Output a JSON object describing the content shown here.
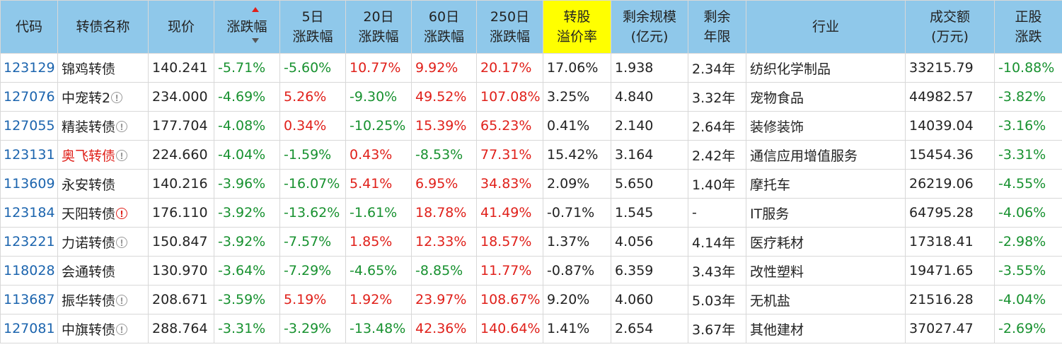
{
  "headers": {
    "code": "代码",
    "name": "转债名称",
    "price": "现价",
    "change": "涨跌幅",
    "d5": [
      "5日",
      "涨跌幅"
    ],
    "d20": [
      "20日",
      "涨跌幅"
    ],
    "d60": [
      "60日",
      "涨跌幅"
    ],
    "d250": [
      "250日",
      "涨跌幅"
    ],
    "premium": [
      "转股",
      "溢价率"
    ],
    "scale": [
      "剩余规模",
      "(亿元)"
    ],
    "years": [
      "剩余",
      "年限"
    ],
    "industry": "行业",
    "volume": [
      "成交额",
      "(万元)"
    ],
    "stock": [
      "正股",
      "涨跌"
    ]
  },
  "rows": [
    {
      "code": "123129",
      "name": "锦鸡转债",
      "name_red": false,
      "info": "none",
      "price": "140.241",
      "change": "-5.71%",
      "d5": "-5.60%",
      "d20": "10.77%",
      "d60": "9.92%",
      "d250": "20.17%",
      "premium": "17.06%",
      "scale": "1.938",
      "years": "2.34年",
      "industry": "纺织化学制品",
      "volume": "33215.79",
      "stock": "-10.88%"
    },
    {
      "code": "127076",
      "name": "中宠转2",
      "name_red": false,
      "info": "gray",
      "price": "234.000",
      "change": "-4.69%",
      "d5": "5.26%",
      "d20": "-9.30%",
      "d60": "49.52%",
      "d250": "107.08%",
      "premium": "3.25%",
      "scale": "4.840",
      "years": "3.32年",
      "industry": "宠物食品",
      "volume": "44982.57",
      "stock": "-3.82%"
    },
    {
      "code": "127055",
      "name": "精装转债",
      "name_red": false,
      "info": "gray",
      "price": "177.704",
      "change": "-4.08%",
      "d5": "0.34%",
      "d20": "-10.25%",
      "d60": "15.39%",
      "d250": "65.23%",
      "premium": "0.41%",
      "scale": "2.140",
      "years": "2.64年",
      "industry": "装修装饰",
      "volume": "14039.04",
      "stock": "-3.16%"
    },
    {
      "code": "123131",
      "name": "奥飞转债",
      "name_red": true,
      "info": "gray",
      "price": "224.660",
      "change": "-4.04%",
      "d5": "-1.59%",
      "d20": "0.43%",
      "d60": "-8.53%",
      "d250": "77.31%",
      "premium": "15.42%",
      "scale": "3.164",
      "years": "2.42年",
      "industry": "通信应用增值服务",
      "volume": "15454.36",
      "stock": "-3.31%"
    },
    {
      "code": "113609",
      "name": "永安转债",
      "name_red": false,
      "info": "none",
      "price": "140.216",
      "change": "-3.96%",
      "d5": "-16.07%",
      "d20": "5.41%",
      "d60": "6.95%",
      "d250": "34.83%",
      "premium": "2.09%",
      "scale": "5.650",
      "years": "1.40年",
      "industry": "摩托车",
      "volume": "26219.06",
      "stock": "-4.55%"
    },
    {
      "code": "123184",
      "name": "天阳转债",
      "name_red": false,
      "info": "red",
      "price": "176.110",
      "change": "-3.92%",
      "d5": "-13.62%",
      "d20": "-1.61%",
      "d60": "18.78%",
      "d250": "41.49%",
      "premium": "-0.71%",
      "scale": "1.545",
      "years": "-",
      "industry": "IT服务",
      "volume": "64795.28",
      "stock": "-4.06%"
    },
    {
      "code": "123221",
      "name": "力诺转债",
      "name_red": false,
      "info": "gray",
      "price": "150.847",
      "change": "-3.92%",
      "d5": "-7.57%",
      "d20": "1.85%",
      "d60": "12.33%",
      "d250": "18.57%",
      "premium": "1.37%",
      "scale": "4.056",
      "years": "4.14年",
      "industry": "医疗耗材",
      "volume": "17318.41",
      "stock": "-2.98%"
    },
    {
      "code": "118028",
      "name": "会通转债",
      "name_red": false,
      "info": "none",
      "price": "130.970",
      "change": "-3.64%",
      "d5": "-7.29%",
      "d20": "-4.65%",
      "d60": "-8.85%",
      "d250": "11.77%",
      "premium": "-0.87%",
      "scale": "6.359",
      "years": "3.43年",
      "industry": "改性塑料",
      "volume": "19471.65",
      "stock": "-3.55%"
    },
    {
      "code": "113687",
      "name": "振华转债",
      "name_red": false,
      "info": "gray",
      "price": "208.671",
      "change": "-3.59%",
      "d5": "5.19%",
      "d20": "1.92%",
      "d60": "23.97%",
      "d250": "108.67%",
      "premium": "9.20%",
      "scale": "4.060",
      "years": "5.03年",
      "industry": "无机盐",
      "volume": "21516.28",
      "stock": "-4.04%"
    },
    {
      "code": "127081",
      "name": "中旗转债",
      "name_red": false,
      "info": "gray",
      "price": "288.764",
      "change": "-3.31%",
      "d5": "-3.29%",
      "d20": "-13.48%",
      "d60": "42.36%",
      "d250": "140.64%",
      "premium": "1.41%",
      "scale": "2.654",
      "years": "3.67年",
      "industry": "其他建材",
      "volume": "37027.47",
      "stock": "-2.69%"
    }
  ],
  "colors": {
    "header_bg": "#8fc8ea",
    "highlight": "#ffff00",
    "up": "#e0201a",
    "down": "#17912f",
    "code": "#1b64ae"
  },
  "info_icon_glyph": "!"
}
